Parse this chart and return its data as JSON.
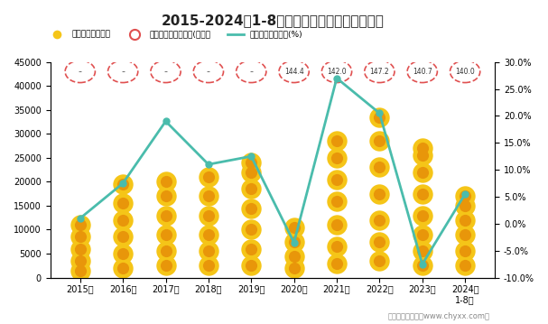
{
  "title": "2015-2024年1-8月陕西省工业企业营收统计图",
  "years": [
    "2015年",
    "2016年",
    "2017年",
    "2018年",
    "2019年",
    "2020年",
    "2021年",
    "2022年",
    "2023年",
    "2024年\n1-8月"
  ],
  "revenue_cols": [
    [
      1500,
      3500,
      6000,
      8500,
      11000
    ],
    [
      2000,
      5000,
      8500,
      12000,
      15500,
      19500
    ],
    [
      2500,
      5500,
      9000,
      13000,
      17000,
      20000
    ],
    [
      2500,
      5500,
      9000,
      13000,
      17000,
      21000
    ],
    [
      2500,
      6000,
      10000,
      14500,
      18500,
      22000,
      24000
    ],
    [
      2000,
      4500,
      7500,
      10500
    ],
    [
      3000,
      6500,
      11000,
      16000,
      20500,
      25000,
      28500
    ],
    [
      3500,
      7500,
      12000,
      17500,
      23000,
      28500,
      33500
    ],
    [
      2500,
      5500,
      9000,
      13000,
      17500,
      22000,
      25500,
      27000
    ],
    [
      2500,
      5500,
      9000,
      12000,
      15000,
      17000
    ]
  ],
  "growth_rate": [
    1.0,
    7.5,
    19.0,
    11.0,
    12.5,
    -3.5,
    27.0,
    20.5,
    -7.5,
    5.5
  ],
  "employee_values": [
    "-",
    "-",
    "-",
    "-",
    "-",
    "144.4",
    "142.0",
    "147.2",
    "140.7",
    "140.0"
  ],
  "bar_color_outer": "#F5C518",
  "bar_color_inner": "#E8960A",
  "circle_edge_color": "#E05050",
  "line_color": "#4ABCAC",
  "legend_labels": [
    "营业收入（亿元）",
    "平均用工人数累计值(万人）",
    "营业收入累计增长(%)"
  ],
  "ylim_left": [
    0,
    45000
  ],
  "ylim_right": [
    -10.0,
    30.0
  ],
  "yticks_left": [
    0,
    5000,
    10000,
    15000,
    20000,
    25000,
    30000,
    35000,
    40000,
    45000
  ],
  "yticks_right": [
    -10.0,
    -5.0,
    0.0,
    5.0,
    10.0,
    15.0,
    20.0,
    25.0,
    30.0
  ],
  "footer": "制图：智研咨询（www.chyxx.com）",
  "bg_color": "#FFFFFF"
}
